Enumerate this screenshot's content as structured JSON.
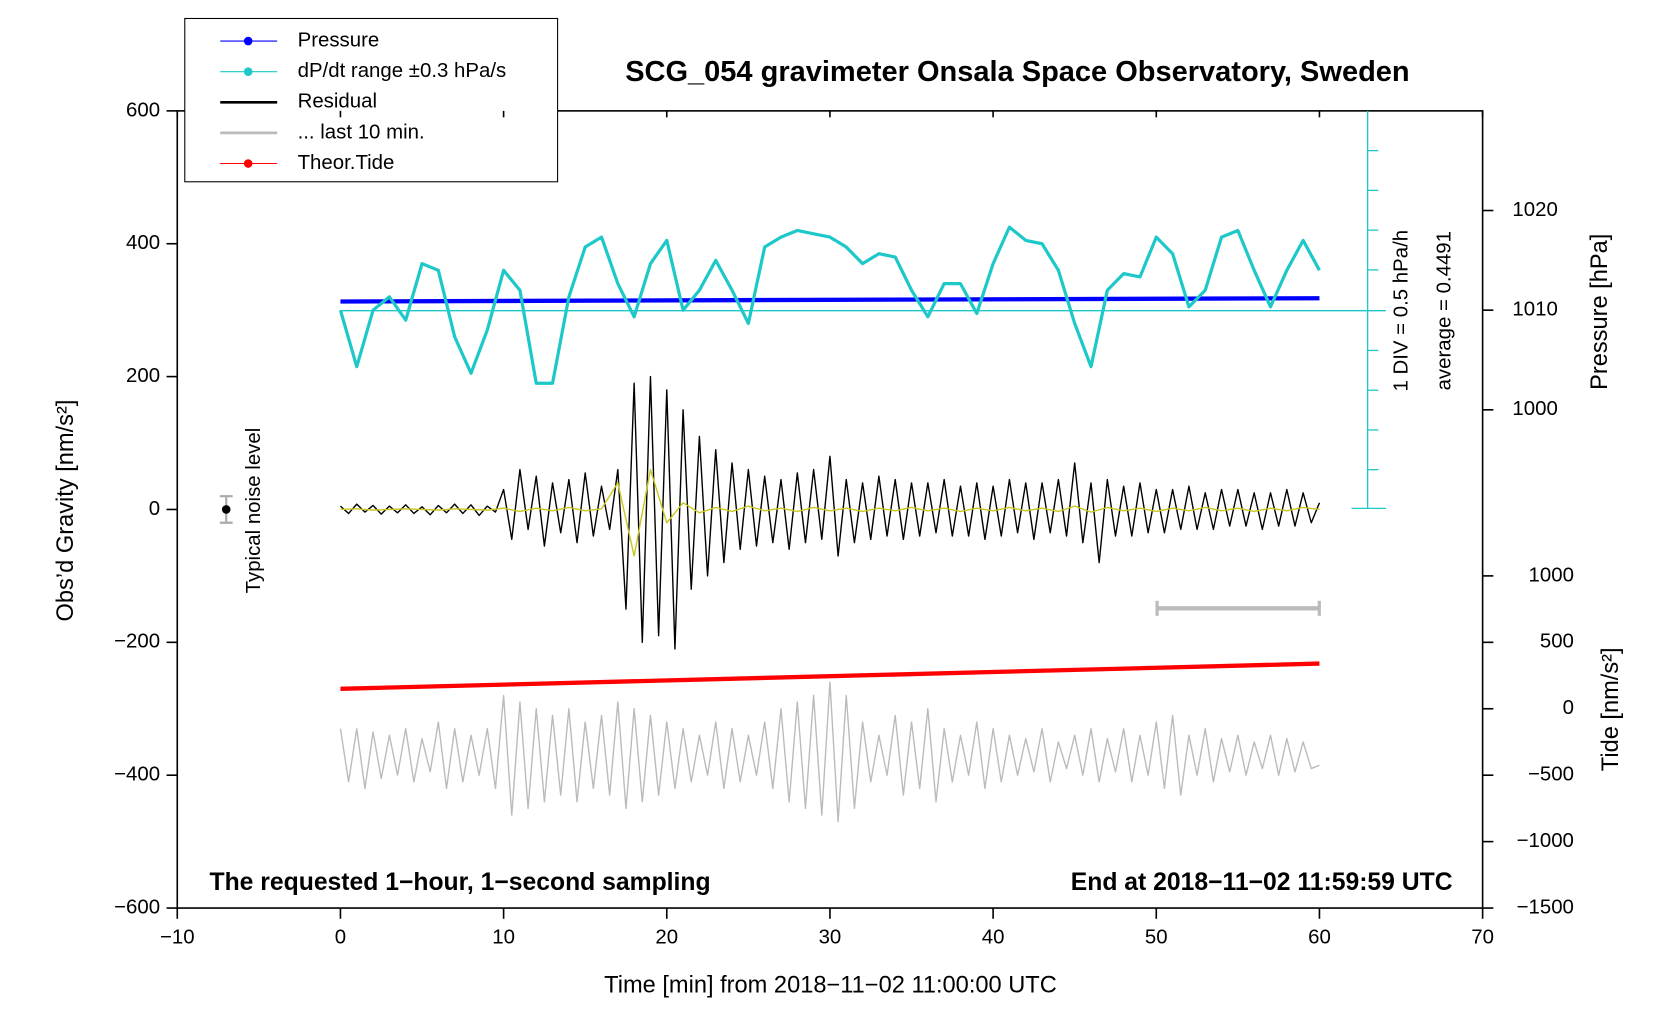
{
  "chart_data": {
    "type": "line",
    "title": "SCG_054 gravimeter Onsala Space Observatory, Sweden",
    "xlabel": "Time [min] from 2018−11−02 11:00:00 UTC",
    "ylabel": "Obs’d Gravity [nm/s²]",
    "y2label": "Pressure [hPa]",
    "y3label": "Tide [nm/s²]",
    "annotations": [
      "Typical noise level",
      "The requested 1−hour, 1−second sampling",
      "End at 2018−11−02 11:59:59 UTC",
      "1 DIV = 0.5 hPa/h",
      "average = 0.4491"
    ],
    "xlim": [
      -10,
      70
    ],
    "xticks": [
      {
        "value": -10,
        "label": "−10"
      },
      0,
      10,
      20,
      30,
      40,
      50,
      60,
      70
    ],
    "ylim": [
      -600,
      600
    ],
    "yticks": [
      {
        "value": -600,
        "label": "−600"
      },
      {
        "value": -400,
        "label": "−400"
      },
      {
        "value": -200,
        "label": "−200"
      },
      0,
      200,
      400,
      600
    ],
    "y2lim": [
      990,
      1030
    ],
    "y2ticks": [
      1000,
      1010,
      1020
    ],
    "y3lim": [
      -1500,
      1500
    ],
    "y3ticks": [
      {
        "value": -1500,
        "label": "−1500"
      },
      {
        "value": -1000,
        "label": "−1000"
      },
      {
        "value": -500,
        "label": "−500"
      },
      0,
      500,
      1000
    ],
    "noise": {
      "x": -7,
      "value": 0,
      "error": 20
    },
    "series": [
      {
        "name": "Pressure",
        "color": "#0000ff",
        "axis": "y2",
        "marker": true,
        "x": [
          0,
          60
        ],
        "values": [
          1010.87,
          1011.2
        ]
      },
      {
        "name": "dP/dt range ±0.3 hPa/s",
        "color": "#1ec8c8",
        "marker": true,
        "x": [
          0,
          1,
          2,
          3,
          4,
          5,
          6,
          7,
          8,
          9,
          10,
          11,
          12,
          13,
          14,
          15,
          16,
          17,
          18,
          19,
          20,
          21,
          22,
          23,
          24,
          25,
          26,
          27,
          28,
          29,
          30,
          31,
          32,
          33,
          34,
          35,
          36,
          37,
          38,
          39,
          40,
          41,
          42,
          43,
          44,
          45,
          46,
          47,
          48,
          49,
          50,
          51,
          52,
          53,
          54,
          55,
          56,
          57,
          58,
          59,
          60
        ],
        "values": [
          300,
          215,
          300,
          320,
          285,
          370,
          360,
          260,
          205,
          270,
          360,
          330,
          190,
          190,
          320,
          395,
          410,
          340,
          290,
          370,
          405,
          300,
          330,
          375,
          330,
          280,
          395,
          410,
          420,
          415,
          410,
          395,
          370,
          385,
          380,
          330,
          290,
          340,
          340,
          295,
          370,
          425,
          405,
          400,
          360,
          280,
          215,
          330,
          355,
          350,
          410,
          385,
          305,
          330,
          410,
          420,
          360,
          305,
          360,
          405,
          360
        ]
      },
      {
        "name": "Residual",
        "color": "#000000",
        "x": [
          0,
          0.5,
          1,
          1.5,
          2,
          2.5,
          3,
          3.5,
          4,
          4.5,
          5,
          5.5,
          6,
          6.5,
          7,
          7.5,
          8,
          8.5,
          9,
          9.5,
          10,
          10.5,
          11,
          11.5,
          12,
          12.5,
          13,
          13.5,
          14,
          14.5,
          15,
          15.5,
          16,
          16.5,
          17,
          17.5,
          18,
          18.5,
          19,
          19.5,
          20,
          20.5,
          21,
          21.5,
          22,
          22.5,
          23,
          23.5,
          24,
          24.5,
          25,
          25.5,
          26,
          26.5,
          27,
          27.5,
          28,
          28.5,
          29,
          29.5,
          30,
          30.5,
          31,
          31.5,
          32,
          32.5,
          33,
          33.5,
          34,
          34.5,
          35,
          35.5,
          36,
          36.5,
          37,
          37.5,
          38,
          38.5,
          39,
          39.5,
          40,
          40.5,
          41,
          41.5,
          42,
          42.5,
          43,
          43.5,
          44,
          44.5,
          45,
          45.5,
          46,
          46.5,
          47,
          47.5,
          48,
          48.5,
          49,
          49.5,
          50,
          50.5,
          51,
          51.5,
          52,
          52.5,
          53,
          53.5,
          54,
          54.5,
          55,
          55.5,
          56,
          56.5,
          57,
          57.5,
          58,
          58.5,
          59,
          59.5,
          60
        ],
        "values": [
          5,
          -6,
          8,
          -4,
          6,
          -7,
          5,
          -5,
          7,
          -6,
          4,
          -8,
          6,
          -5,
          8,
          -6,
          7,
          -9,
          5,
          -4,
          30,
          -45,
          60,
          -30,
          50,
          -55,
          40,
          -35,
          45,
          -50,
          55,
          -40,
          35,
          -30,
          60,
          -150,
          190,
          -200,
          200,
          -190,
          180,
          -210,
          150,
          -120,
          110,
          -100,
          90,
          -80,
          70,
          -60,
          60,
          -55,
          50,
          -50,
          45,
          -60,
          55,
          -50,
          60,
          -45,
          80,
          -70,
          45,
          -50,
          40,
          -45,
          50,
          -40,
          45,
          -45,
          40,
          -40,
          40,
          -35,
          45,
          -40,
          35,
          -40,
          40,
          -45,
          35,
          -40,
          45,
          -35,
          40,
          -45,
          40,
          -35,
          45,
          -40,
          70,
          -50,
          40,
          -80,
          45,
          -40,
          35,
          -40,
          40,
          -35,
          30,
          -35,
          30,
          -30,
          35,
          -30,
          25,
          -30,
          30,
          -25,
          30,
          -25,
          25,
          -30,
          25,
          -25,
          30,
          -25,
          25,
          -20,
          10
        ]
      },
      {
        "color": "#c8c81e",
        "x": [
          0,
          1,
          2,
          3,
          4,
          5,
          6,
          7,
          8,
          9,
          10,
          11,
          12,
          13,
          14,
          15,
          16,
          17,
          18,
          19,
          20,
          21,
          22,
          23,
          24,
          25,
          26,
          27,
          28,
          29,
          30,
          31,
          32,
          33,
          34,
          35,
          36,
          37,
          38,
          39,
          40,
          41,
          42,
          43,
          44,
          45,
          46,
          47,
          48,
          49,
          50,
          51,
          52,
          53,
          54,
          55,
          56,
          57,
          58,
          59,
          60
        ],
        "values": [
          0,
          1,
          -1,
          0,
          1,
          0,
          -1,
          1,
          0,
          -1,
          2,
          -3,
          2,
          -2,
          3,
          -2,
          1,
          40,
          -70,
          60,
          -20,
          10,
          -5,
          3,
          -3,
          5,
          -2,
          2,
          -3,
          3,
          -2,
          2,
          -3,
          2,
          -2,
          3,
          -2,
          2,
          -3,
          2,
          -2,
          3,
          -2,
          2,
          -3,
          5,
          -4,
          3,
          -2,
          2,
          -3,
          2,
          -2,
          3,
          -2,
          2,
          -3,
          2,
          -2,
          3,
          0
        ]
      },
      {
        "name": "... last 10 min.",
        "color": "#bbbbbb",
        "x": [
          0,
          0.5,
          1,
          1.5,
          2,
          2.5,
          3,
          3.5,
          4,
          4.5,
          5,
          5.5,
          6,
          6.5,
          7,
          7.5,
          8,
          8.5,
          9,
          9.5,
          10,
          10.5,
          11,
          11.5,
          12,
          12.5,
          13,
          13.5,
          14,
          14.5,
          15,
          15.5,
          16,
          16.5,
          17,
          17.5,
          18,
          18.5,
          19,
          19.5,
          20,
          20.5,
          21,
          21.5,
          22,
          22.5,
          23,
          23.5,
          24,
          24.5,
          25,
          25.5,
          26,
          26.5,
          27,
          27.5,
          28,
          28.5,
          29,
          29.5,
          30,
          30.5,
          31,
          31.5,
          32,
          32.5,
          33,
          33.5,
          34,
          34.5,
          35,
          35.5,
          36,
          36.5,
          37,
          37.5,
          38,
          38.5,
          39,
          39.5,
          40,
          40.5,
          41,
          41.5,
          42,
          42.5,
          43,
          43.5,
          44,
          44.5,
          45,
          45.5,
          46,
          46.5,
          47,
          47.5,
          48,
          48.5,
          49,
          49.5,
          50,
          50.5,
          51,
          51.5,
          52,
          52.5,
          53,
          53.5,
          54,
          54.5,
          55,
          55.5,
          56,
          56.5,
          57,
          57.5,
          58,
          58.5,
          59,
          59.5,
          60
        ],
        "values": [
          -330,
          -410,
          -330,
          -420,
          -335,
          -405,
          -340,
          -400,
          -330,
          -410,
          -345,
          -395,
          -320,
          -420,
          -330,
          -410,
          -340,
          -400,
          -330,
          -420,
          -280,
          -460,
          -290,
          -450,
          -300,
          -440,
          -310,
          -430,
          -300,
          -440,
          -320,
          -420,
          -310,
          -430,
          -290,
          -450,
          -300,
          -440,
          -310,
          -430,
          -320,
          -420,
          -330,
          -410,
          -340,
          -400,
          -320,
          -420,
          -330,
          -410,
          -340,
          -400,
          -320,
          -420,
          -300,
          -440,
          -290,
          -450,
          -280,
          -460,
          -260,
          -470,
          -280,
          -450,
          -320,
          -410,
          -340,
          -400,
          -310,
          -430,
          -320,
          -420,
          -300,
          -440,
          -330,
          -410,
          -340,
          -400,
          -320,
          -420,
          -330,
          -410,
          -340,
          -400,
          -345,
          -395,
          -330,
          -410,
          -350,
          -390,
          -340,
          -400,
          -330,
          -410,
          -345,
          -395,
          -330,
          -410,
          -340,
          -400,
          -320,
          -420,
          -310,
          -430,
          -340,
          -400,
          -330,
          -410,
          -345,
          -395,
          -340,
          -400,
          -350,
          -390,
          -340,
          -400,
          -345,
          -395,
          -350,
          -390,
          -385
        ]
      },
      {
        "name": "Theor.Tide",
        "color": "#ff0000",
        "axis": "y3",
        "marker": true,
        "x": [
          0,
          60
        ],
        "values": [
          150,
          340
        ]
      }
    ]
  }
}
